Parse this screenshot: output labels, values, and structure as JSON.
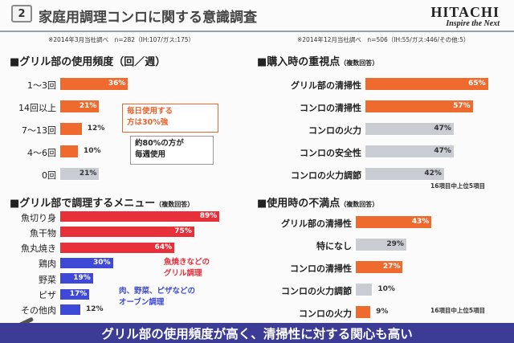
{
  "header": {
    "slide_number": "2",
    "title": "家庭用調理コンロに関する意識調査",
    "logo_main": "HITACHI",
    "logo_tagline": "Inspire the Next"
  },
  "sources": {
    "left": "※2014年3月当社調べ　n=282（IH:107/ガス:175）",
    "right": "※2014年12月当社調べ　n=506（IH:55/ガス:446/その他:5）"
  },
  "colors": {
    "orange": "#ef6a2e",
    "gray": "#c9ccd2",
    "red": "#e8303a",
    "blue": "#3e49d8",
    "banner": "#3c3c96"
  },
  "chart_data": [
    {
      "id": "grill_freq",
      "type": "bar",
      "orientation": "horizontal",
      "title": "■グリル部の使用頻度（回／週）",
      "categories": [
        "1～3回",
        "14回以上",
        "7～13回",
        "4～6回",
        "0回"
      ],
      "values": [
        36,
        21,
        12,
        10,
        21
      ],
      "labels": [
        "36%",
        "21%",
        "12%",
        "10%",
        "21%"
      ],
      "colors": [
        "orange",
        "orange",
        "orange",
        "orange",
        "gray"
      ],
      "annotations": {
        "daily": [
          "毎日使用する",
          "方は30%強"
        ],
        "weekly": [
          "約80%の方が",
          "毎週使用"
        ]
      }
    },
    {
      "id": "purchase_points",
      "type": "bar",
      "orientation": "horizontal",
      "title": "■購入時の重視点",
      "title_sub": "（複数回答）",
      "categories": [
        "グリル部の清掃性",
        "コンロの清掃性",
        "コンロの火力",
        "コンロの安全性",
        "コンロの火力調節"
      ],
      "values": [
        65,
        57,
        47,
        47,
        42
      ],
      "labels": [
        "65%",
        "57%",
        "47%",
        "47%",
        "42%"
      ],
      "colors": [
        "orange",
        "orange",
        "gray",
        "gray",
        "gray"
      ],
      "footnote": "16項目中上位5項目"
    },
    {
      "id": "grill_menu",
      "type": "bar",
      "orientation": "horizontal",
      "title": "■グリル部で調理するメニュー",
      "title_sub": "（複数回答）",
      "categories": [
        "魚切り身",
        "魚干物",
        "魚丸焼き",
        "鶏肉",
        "野菜",
        "ピザ",
        "その他肉"
      ],
      "values": [
        89,
        75,
        64,
        30,
        19,
        17,
        12
      ],
      "labels": [
        "89%",
        "75%",
        "64%",
        "30%",
        "19%",
        "17%",
        "12%"
      ],
      "colors": [
        "red",
        "red",
        "red",
        "blue",
        "blue",
        "blue",
        "blue"
      ],
      "annotations": {
        "fish": [
          "魚焼きなどの",
          "グリル調理"
        ],
        "oven": [
          "肉、野菜、ピザなどの",
          "オーブン調理"
        ]
      }
    },
    {
      "id": "dissatisfaction",
      "type": "bar",
      "orientation": "horizontal",
      "title": "■使用時の不満点",
      "title_sub": "（複数回答）",
      "categories": [
        "グリル部の清掃性",
        "特になし",
        "コンロの清掃性",
        "コンロの火力調節",
        "コンロの火力"
      ],
      "values": [
        43,
        29,
        27,
        10,
        9
      ],
      "labels": [
        "43%",
        "29%",
        "27%",
        "10%",
        "9%"
      ],
      "colors": [
        "orange",
        "gray",
        "orange",
        "gray",
        "orange"
      ],
      "footnote": "16項目中上位5項目"
    }
  ],
  "banner": {
    "text": "グリル部の使用頻度が高く、清掃性に対する関心も高い"
  }
}
